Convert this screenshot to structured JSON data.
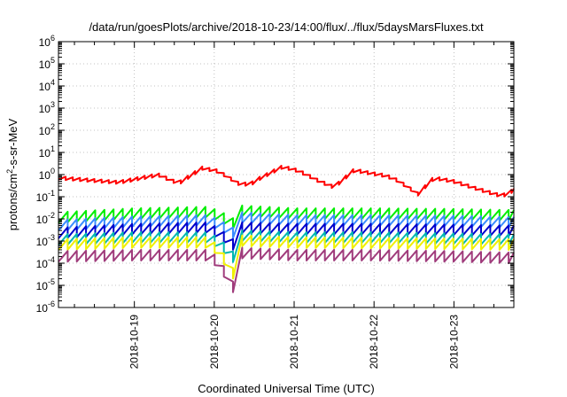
{
  "chart_data": {
    "type": "line",
    "title": "/data/run/goesPlots/archive/2018-10-23/14:00/flux/../flux/5daysMarsFluxes.txt",
    "xlabel": "Coordinated Universal Time (UTC)",
    "ylabel": "protons/cm²-s-sr-MeV",
    "yscale": "log",
    "ylim": [
      1e-06,
      1000000.0
    ],
    "xlim": [
      -0.95,
      4.75
    ],
    "x_axis_origin": "days relative to 2018-10-19 00:00 UTC",
    "y_tick_labels": [
      {
        "base": "10",
        "exp": "-6"
      },
      {
        "base": "10",
        "exp": "-5"
      },
      {
        "base": "10",
        "exp": "-4"
      },
      {
        "base": "10",
        "exp": "-3"
      },
      {
        "base": "10",
        "exp": "-2"
      },
      {
        "base": "10",
        "exp": "-1"
      },
      {
        "base": "10",
        "exp": "0"
      },
      {
        "base": "10",
        "exp": "1"
      },
      {
        "base": "10",
        "exp": "2"
      },
      {
        "base": "10",
        "exp": "3"
      },
      {
        "base": "10",
        "exp": "4"
      },
      {
        "base": "10",
        "exp": "5"
      },
      {
        "base": "10",
        "exp": "6"
      }
    ],
    "x_ticks": [
      {
        "x": 0,
        "label": "2018-10-19"
      },
      {
        "x": 1,
        "label": "2018-10-20"
      },
      {
        "x": 2,
        "label": "2018-10-21"
      },
      {
        "x": 3,
        "label": "2018-10-22"
      },
      {
        "x": 4,
        "label": "2018-10-23"
      }
    ],
    "grid": true,
    "legend": "none",
    "sawtooth": {
      "period_days": 0.115,
      "drop_factor": 0.33
    },
    "series": [
      {
        "color": "#ff0000",
        "envelope": [
          [
            -0.95,
            0.8
          ],
          [
            -0.2,
            0.5
          ],
          [
            0.3,
            1.1
          ],
          [
            0.55,
            0.45
          ],
          [
            0.85,
            2.2
          ],
          [
            1.05,
            1.6
          ],
          [
            1.3,
            0.45
          ],
          [
            1.45,
            0.4
          ],
          [
            1.55,
            0.7
          ],
          [
            1.85,
            2.5
          ],
          [
            2.05,
            1.7
          ],
          [
            2.3,
            0.6
          ],
          [
            2.5,
            0.3
          ],
          [
            2.75,
            1.8
          ],
          [
            2.95,
            1.3
          ],
          [
            3.15,
            1.0
          ],
          [
            3.3,
            0.6
          ],
          [
            3.55,
            0.15
          ],
          [
            3.75,
            0.8
          ],
          [
            4.0,
            0.55
          ],
          [
            4.3,
            0.25
          ],
          [
            4.6,
            0.12
          ],
          [
            4.75,
            0.22
          ]
        ],
        "sawtooth": false
      },
      {
        "color": "#00ee00",
        "envelope": [
          [
            -0.95,
            0.02
          ],
          [
            0.0,
            0.03
          ],
          [
            0.9,
            0.035
          ],
          [
            1.05,
            0.025
          ],
          [
            1.3,
            0.008
          ],
          [
            1.35,
            0.04
          ],
          [
            2.0,
            0.03
          ],
          [
            3.0,
            0.03
          ],
          [
            4.0,
            0.028
          ],
          [
            4.75,
            0.025
          ]
        ],
        "sawtooth": true
      },
      {
        "color": "#3a8cff",
        "envelope": [
          [
            -0.95,
            0.009
          ],
          [
            0.0,
            0.013
          ],
          [
            0.9,
            0.015
          ],
          [
            1.05,
            0.01
          ],
          [
            1.3,
            0.003
          ],
          [
            1.35,
            0.02
          ],
          [
            2.0,
            0.015
          ],
          [
            3.0,
            0.015
          ],
          [
            4.0,
            0.014
          ],
          [
            4.75,
            0.012
          ]
        ],
        "sawtooth": true
      },
      {
        "color": "#0000cc",
        "envelope": [
          [
            -0.95,
            0.004
          ],
          [
            0.0,
            0.006
          ],
          [
            0.9,
            0.007
          ],
          [
            1.05,
            0.004
          ],
          [
            1.3,
            0.0008
          ],
          [
            1.35,
            0.007
          ],
          [
            2.0,
            0.006
          ],
          [
            3.0,
            0.006
          ],
          [
            4.0,
            0.0055
          ],
          [
            4.75,
            0.005
          ]
        ],
        "sawtooth": true
      },
      {
        "color": "#00b8b0",
        "envelope": [
          [
            -0.95,
            0.002
          ],
          [
            0.0,
            0.0025
          ],
          [
            0.9,
            0.0025
          ],
          [
            1.05,
            0.0015
          ],
          [
            1.3,
            0.0002
          ],
          [
            1.35,
            0.003
          ],
          [
            2.0,
            0.0025
          ],
          [
            3.0,
            0.0025
          ],
          [
            4.0,
            0.0022
          ],
          [
            4.75,
            0.002
          ]
        ],
        "sawtooth": true
      },
      {
        "color": "#f0f000",
        "envelope": [
          [
            -0.95,
            0.0012
          ],
          [
            0.0,
            0.0015
          ],
          [
            0.9,
            0.0015
          ],
          [
            1.05,
            0.0007
          ],
          [
            1.25,
            5e-05
          ],
          [
            1.3,
            6e-05
          ],
          [
            1.35,
            0.0018
          ],
          [
            2.0,
            0.0015
          ],
          [
            3.0,
            0.0014
          ],
          [
            4.0,
            0.0013
          ],
          [
            4.75,
            0.0012
          ]
        ],
        "sawtooth": true
      },
      {
        "color": "#a03c7c",
        "envelope": [
          [
            -0.95,
            0.00035
          ],
          [
            0.0,
            0.0004
          ],
          [
            0.9,
            0.0004
          ],
          [
            1.05,
            0.0002
          ],
          [
            1.25,
            1.2e-05
          ],
          [
            1.3,
            2e-05
          ],
          [
            1.35,
            0.0005
          ],
          [
            2.0,
            0.0004
          ],
          [
            3.0,
            0.0004
          ],
          [
            4.0,
            0.00035
          ],
          [
            4.75,
            0.0003
          ]
        ],
        "sawtooth": true
      }
    ]
  }
}
